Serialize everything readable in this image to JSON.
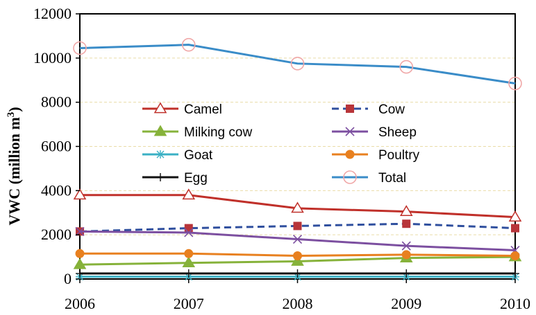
{
  "chart_data": {
    "type": "line",
    "x": [
      2006,
      2007,
      2008,
      2009,
      2010
    ],
    "xlim": [
      2006,
      2010
    ],
    "ylim": [
      0,
      12000
    ],
    "yticks": [
      0,
      2000,
      4000,
      6000,
      8000,
      10000,
      12000
    ],
    "ylabel_main": "VWC (million m",
    "ylabel_sup": "3",
    "ylabel_close": ")",
    "grid": "horizontal dashed",
    "legend_position": "center-left",
    "series": [
      {
        "name": "Camel",
        "values": [
          3800,
          3800,
          3200,
          3050,
          2800
        ],
        "color": "#c0302a",
        "marker": "triangle-open",
        "dash": false
      },
      {
        "name": "Cow",
        "values": [
          2150,
          2300,
          2400,
          2500,
          2300
        ],
        "color": "#2f4f9e",
        "marker": "square",
        "marker_color": "#b8353a",
        "dash": true
      },
      {
        "name": "Milking cow",
        "values": [
          650,
          730,
          800,
          950,
          1000
        ],
        "color": "#86b23a",
        "marker": "triangle",
        "dash": false
      },
      {
        "name": "Sheep",
        "values": [
          2150,
          2100,
          1800,
          1500,
          1300
        ],
        "color": "#7c4fa0",
        "marker": "x",
        "dash": false
      },
      {
        "name": "Goat",
        "values": [
          100,
          100,
          100,
          100,
          100
        ],
        "color": "#3ab0c4",
        "marker": "star",
        "dash": false
      },
      {
        "name": "Poultry",
        "values": [
          1150,
          1150,
          1050,
          1100,
          1050
        ],
        "color": "#e8801f",
        "marker": "circle",
        "dash": false
      },
      {
        "name": "Egg",
        "values": [
          250,
          250,
          250,
          250,
          250
        ],
        "color": "#111111",
        "marker": "plus",
        "dash": false
      },
      {
        "name": "Total",
        "values": [
          10450,
          10600,
          9750,
          9600,
          8850
        ],
        "color": "#3a8cc8",
        "marker": "circle-open",
        "marker_color": "#f0a7a7",
        "dash": false
      }
    ]
  }
}
